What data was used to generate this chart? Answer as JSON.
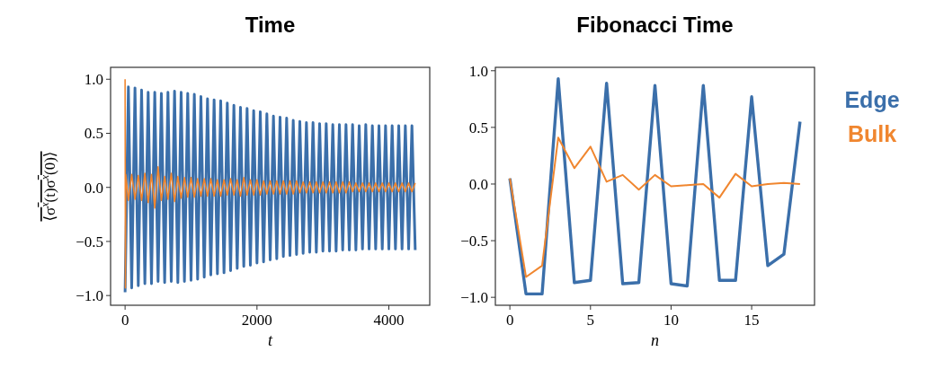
{
  "chart_data": [
    {
      "type": "line",
      "title": "Time",
      "xlabel": "t",
      "ylabel": "⟨σ$^{x}$(t)σ$^{x}$(0)⟩",
      "xlim": [
        -220,
        4620
      ],
      "ylim": [
        -1.09,
        1.11
      ],
      "xticks": [
        0,
        2000,
        4000
      ],
      "yticks": [
        {
          "value": 1,
          "label": "1.0"
        },
        {
          "value": 0.5,
          "label": "0.5"
        },
        {
          "value": 0,
          "label": "0.0"
        },
        {
          "value": -0.5,
          "label": "−0.5"
        },
        {
          "value": -1,
          "label": "−1.0"
        }
      ],
      "x": [
        0,
        50,
        100,
        150,
        200,
        250,
        300,
        350,
        400,
        450,
        500,
        550,
        600,
        650,
        700,
        750,
        800,
        850,
        900,
        950,
        1000,
        1050,
        1100,
        1150,
        1200,
        1250,
        1300,
        1350,
        1400,
        1450,
        1500,
        1550,
        1600,
        1650,
        1700,
        1750,
        1800,
        1850,
        1900,
        1950,
        2000,
        2050,
        2100,
        2150,
        2200,
        2250,
        2300,
        2350,
        2400,
        2450,
        2500,
        2550,
        2600,
        2650,
        2700,
        2750,
        2800,
        2850,
        2900,
        2950,
        3000,
        3050,
        3100,
        3150,
        3200,
        3250,
        3300,
        3350,
        3400,
        3450,
        3500,
        3550,
        3600,
        3650,
        3700,
        3750,
        3800,
        3850,
        3900,
        3950,
        4000,
        4050,
        4100,
        4150,
        4200,
        4250,
        4300,
        4350,
        4400
      ],
      "series": [
        {
          "color": "#3b6faa",
          "values": [
            -0.97,
            0.93,
            -0.93,
            0.92,
            -0.91,
            0.9,
            -0.89,
            0.88,
            -0.89,
            0.88,
            -0.87,
            0.87,
            -0.88,
            0.88,
            -0.87,
            0.89,
            -0.88,
            0.88,
            -0.87,
            0.87,
            -0.86,
            0.86,
            -0.85,
            0.84,
            -0.83,
            0.82,
            -0.81,
            0.81,
            -0.8,
            0.8,
            -0.79,
            0.78,
            -0.77,
            0.76,
            -0.75,
            0.74,
            -0.73,
            0.73,
            -0.72,
            0.71,
            -0.7,
            0.7,
            -0.69,
            0.68,
            -0.67,
            0.66,
            -0.66,
            0.65,
            -0.64,
            0.64,
            -0.63,
            0.62,
            -0.62,
            0.61,
            -0.61,
            0.6,
            -0.6,
            0.6,
            -0.6,
            0.59,
            -0.59,
            0.59,
            -0.59,
            0.58,
            -0.59,
            0.58,
            -0.58,
            0.58,
            -0.58,
            0.58,
            -0.58,
            0.57,
            -0.57,
            0.58,
            -0.57,
            0.57,
            -0.57,
            0.57,
            -0.57,
            0.57,
            -0.57,
            0.57,
            -0.57,
            0.57,
            -0.57,
            0.57,
            -0.57,
            0.57,
            -0.58
          ]
        },
        {
          "color": "#f0862f",
          "x": [
            0,
            5,
            10,
            50,
            100,
            150,
            200,
            250,
            300,
            350,
            400,
            450,
            500,
            550,
            600,
            650,
            700,
            750,
            800,
            850,
            900,
            950,
            1000,
            1050,
            1100,
            1150,
            1200,
            1250,
            1300,
            1350,
            1400,
            1450,
            1500,
            1550,
            1600,
            1650,
            1700,
            1750,
            1800,
            1850,
            1900,
            1950,
            2000,
            2050,
            2100,
            2150,
            2200,
            2250,
            2300,
            2350,
            2400,
            2450,
            2500,
            2550,
            2600,
            2650,
            2700,
            2750,
            2800,
            2850,
            2900,
            2950,
            3000,
            3050,
            3100,
            3150,
            3200,
            3250,
            3300,
            3350,
            3400,
            3450,
            3500,
            3550,
            3600,
            3650,
            3700,
            3750,
            3800,
            3850,
            3900,
            3950,
            4000,
            4050,
            4100,
            4150,
            4200,
            4250,
            4300,
            4350,
            4400
          ],
          "values": [
            1.0,
            -0.93,
            0.12,
            -0.12,
            0.12,
            -0.11,
            0.11,
            -0.12,
            0.13,
            -0.14,
            0.12,
            -0.19,
            0.19,
            -0.12,
            0.1,
            -0.11,
            0.13,
            -0.13,
            0.1,
            -0.1,
            0.09,
            -0.09,
            0.09,
            -0.09,
            0.08,
            -0.08,
            0.08,
            -0.08,
            0.08,
            -0.08,
            0.07,
            -0.08,
            0.07,
            -0.07,
            0.08,
            -0.07,
            0.07,
            -0.08,
            0.09,
            -0.07,
            0.07,
            -0.07,
            0.07,
            -0.07,
            0.06,
            -0.06,
            0.06,
            -0.06,
            0.06,
            -0.06,
            0.06,
            -0.06,
            0.06,
            -0.06,
            0.06,
            -0.05,
            0.05,
            -0.05,
            0.05,
            -0.05,
            0.05,
            -0.05,
            0.05,
            -0.05,
            0.05,
            -0.05,
            0.05,
            -0.05,
            0.05,
            -0.05,
            0.05,
            -0.04,
            0.04,
            -0.04,
            0.04,
            -0.04,
            0.04,
            -0.04,
            0.04,
            -0.04,
            0.04,
            -0.04,
            0.04,
            -0.04,
            0.04,
            -0.04,
            0.04,
            -0.04,
            0.04,
            -0.04,
            0.04
          ]
        }
      ]
    },
    {
      "type": "line",
      "title": "Fibonacci Time",
      "xlabel": "n",
      "xlim": [
        -0.9,
        18.9
      ],
      "ylim": [
        -1.07,
        1.03
      ],
      "xticks": [
        0,
        5,
        10,
        15
      ],
      "yticks": [
        {
          "value": 1,
          "label": "1.0"
        },
        {
          "value": 0.5,
          "label": "0.5"
        },
        {
          "value": 0,
          "label": "0.0"
        },
        {
          "value": -0.5,
          "label": "−0.5"
        },
        {
          "value": -1,
          "label": "−1.0"
        }
      ],
      "legend": "right",
      "x": [
        0,
        1,
        2,
        3,
        4,
        5,
        6,
        7,
        8,
        9,
        10,
        11,
        12,
        13,
        14,
        15,
        16,
        17,
        18
      ],
      "series": [
        {
          "name": "Edge",
          "color": "#3b6faa",
          "values": [
            0.05,
            -0.97,
            -0.97,
            0.93,
            -0.87,
            -0.85,
            0.89,
            -0.88,
            -0.87,
            0.87,
            -0.88,
            -0.9,
            0.87,
            -0.85,
            -0.85,
            0.77,
            -0.72,
            -0.62,
            0.55
          ]
        },
        {
          "name": "Bulk",
          "color": "#f0862f",
          "values": [
            0.05,
            -0.82,
            -0.72,
            0.41,
            0.14,
            0.33,
            0.02,
            0.08,
            -0.05,
            0.08,
            -0.02,
            -0.01,
            0.0,
            -0.12,
            0.09,
            -0.02,
            0.0,
            0.01,
            0.0
          ]
        }
      ]
    }
  ]
}
